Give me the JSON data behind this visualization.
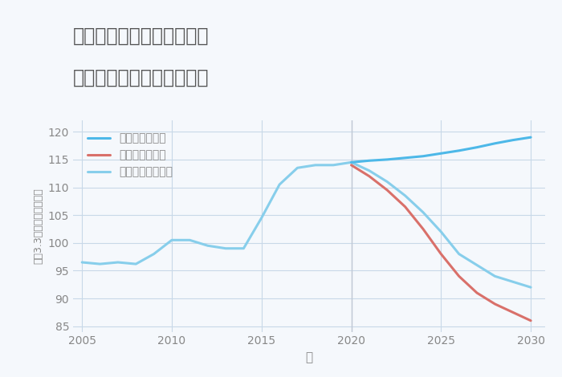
{
  "title_line1": "千葉県長生郡白子町幸治の",
  "title_line2": "中古マンションの価格推移",
  "xlabel": "年",
  "ylabel": "坪（3.3㎡）単価（万円）",
  "ylim": [
    84,
    122
  ],
  "xlim": [
    2004.5,
    2030.8
  ],
  "yticks": [
    85,
    90,
    95,
    100,
    105,
    110,
    115,
    120
  ],
  "xticks": [
    2005,
    2010,
    2015,
    2020,
    2025,
    2030
  ],
  "good_scenario": {
    "x": [
      2020,
      2021,
      2022,
      2023,
      2024,
      2025,
      2026,
      2027,
      2028,
      2029,
      2030
    ],
    "y": [
      114.5,
      114.8,
      115.0,
      115.3,
      115.6,
      116.1,
      116.6,
      117.2,
      117.9,
      118.5,
      119.0
    ],
    "color": "#4db8e8",
    "label": "グッドシナリオ",
    "linewidth": 2.2
  },
  "bad_scenario": {
    "x": [
      2020,
      2021,
      2022,
      2023,
      2024,
      2025,
      2026,
      2027,
      2028,
      2029,
      2030
    ],
    "y": [
      114.0,
      112.0,
      109.5,
      106.5,
      102.5,
      98.0,
      94.0,
      91.0,
      89.0,
      87.5,
      86.0
    ],
    "color": "#d9706a",
    "label": "バッドシナリオ",
    "linewidth": 2.2
  },
  "normal_scenario_hist": {
    "x": [
      2005,
      2006,
      2007,
      2008,
      2009,
      2010,
      2011,
      2012,
      2013,
      2014,
      2015,
      2016,
      2017,
      2018,
      2019,
      2020
    ],
    "y": [
      96.5,
      96.2,
      96.5,
      96.2,
      98.0,
      100.5,
      100.5,
      99.5,
      99.0,
      99.0,
      104.5,
      110.5,
      113.5,
      114.0,
      114.0,
      114.5
    ],
    "color": "#87ceeb",
    "label": "ノーマルシナリオ",
    "linewidth": 2.2
  },
  "normal_scenario_fut": {
    "x": [
      2020,
      2021,
      2022,
      2023,
      2024,
      2025,
      2026,
      2027,
      2028,
      2029,
      2030
    ],
    "y": [
      114.5,
      113.0,
      111.0,
      108.5,
      105.5,
      102.0,
      98.0,
      96.0,
      94.0,
      93.0,
      92.0
    ],
    "color": "#87ceeb",
    "linewidth": 2.2
  },
  "bg_color": "#f5f8fc",
  "grid_color": "#c8d8e8",
  "title_color": "#555555",
  "label_color": "#888888",
  "tick_color": "#888888",
  "vline_x": 2020,
  "vline_color": "#c0c8d5"
}
